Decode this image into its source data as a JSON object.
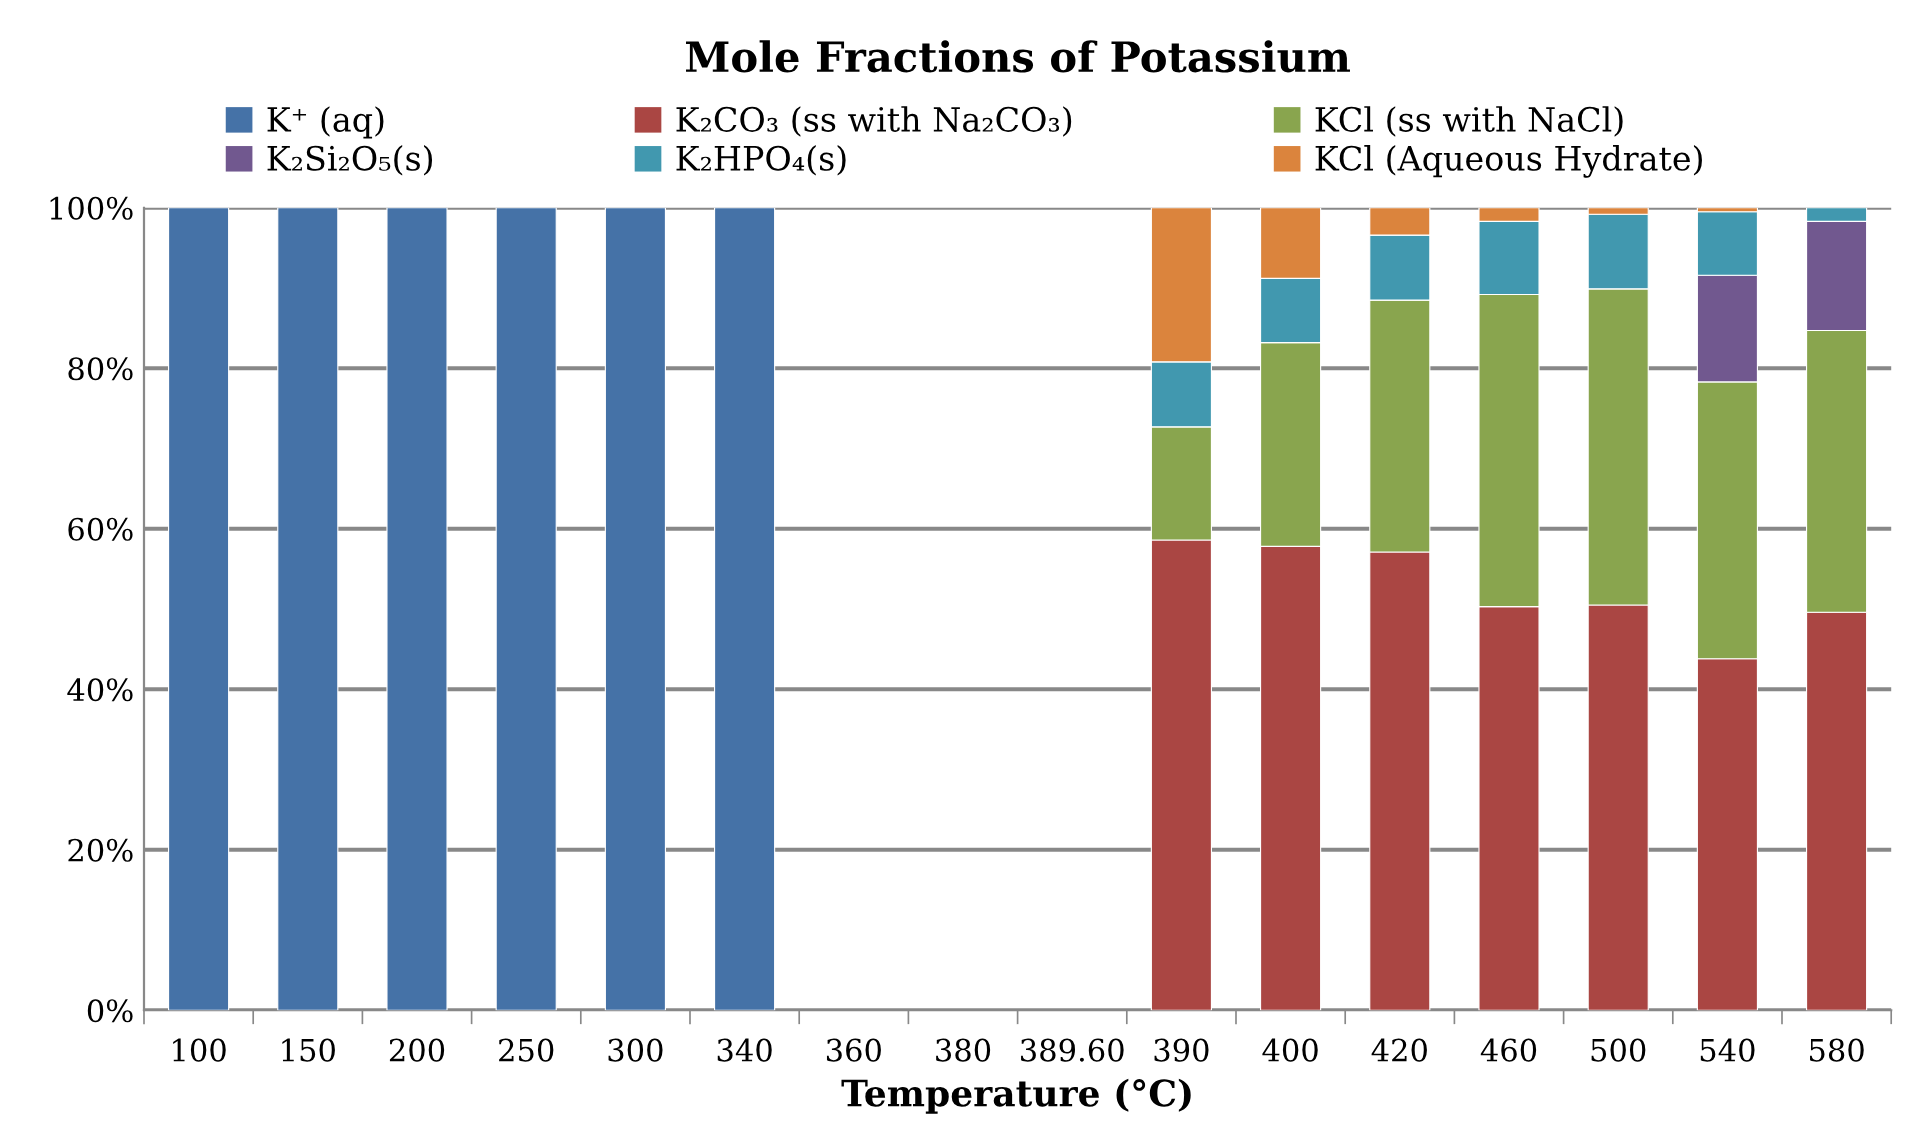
{
  "chart_data": {
    "type": "bar",
    "title": "Mole Fractions of Potassium",
    "xlabel": "Temperature (°C)",
    "stacked": true,
    "categories": [
      "100",
      "150",
      "200",
      "250",
      "300",
      "340",
      "360",
      "380",
      "389.60",
      "390",
      "400",
      "420",
      "460",
      "500",
      "540",
      "580"
    ],
    "series": [
      {
        "name": "K⁺ (aq)",
        "color": "#4572a7",
        "values": [
          100,
          100,
          100,
          100,
          100,
          100,
          null,
          null,
          null,
          null,
          null,
          null,
          null,
          null,
          null,
          null
        ]
      },
      {
        "name": "K₂CO₃ (ss with Na₂CO₃)",
        "color": "#aa4643",
        "values": [
          null,
          null,
          null,
          null,
          null,
          null,
          null,
          null,
          null,
          58.6,
          57.8,
          57.1,
          50.3,
          50.5,
          43.8,
          49.6
        ]
      },
      {
        "name": "KCl (ss with NaCl)",
        "color": "#89a54e",
        "values": [
          null,
          null,
          null,
          null,
          null,
          null,
          null,
          null,
          null,
          14.1,
          25.4,
          31.4,
          38.9,
          39.4,
          34.5,
          35.1
        ]
      },
      {
        "name": "K₂Si₂O₅(s)",
        "color": "#71588f",
        "values": [
          null,
          null,
          null,
          null,
          null,
          null,
          null,
          null,
          null,
          null,
          null,
          null,
          null,
          null,
          13.3,
          13.6
        ]
      },
      {
        "name": "K₂HPO₄(s)",
        "color": "#4198af",
        "values": [
          null,
          null,
          null,
          null,
          null,
          null,
          null,
          null,
          null,
          8.1,
          8.0,
          8.1,
          9.1,
          9.3,
          7.9,
          1.7
        ]
      },
      {
        "name": "KCl (Aqueous Hydrate)",
        "color": "#db843d",
        "values": [
          null,
          null,
          null,
          null,
          null,
          null,
          null,
          null,
          null,
          19.2,
          8.8,
          3.4,
          1.7,
          0.8,
          0.5,
          null
        ]
      }
    ],
    "ylim": [
      0,
      100
    ],
    "yticks": [
      {
        "value": 0,
        "label": "0%"
      },
      {
        "value": 20,
        "label": "20%"
      },
      {
        "value": 40,
        "label": "40%"
      },
      {
        "value": 60,
        "label": "60%"
      },
      {
        "value": 80,
        "label": "80%"
      },
      {
        "value": 100,
        "label": "100%"
      }
    ],
    "grid": "y",
    "legend": "top"
  }
}
